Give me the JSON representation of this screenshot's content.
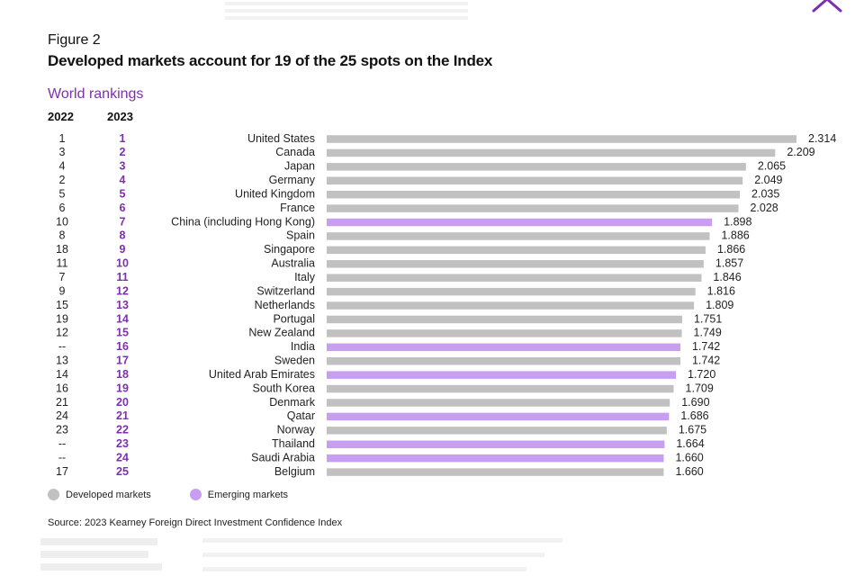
{
  "figure": {
    "label": "Figure 2",
    "title": "Developed markets account for 19 of the 25 spots on the Index",
    "section_title": "World rankings",
    "col_2022": "2022",
    "col_2023": "2023"
  },
  "colors": {
    "developed": "#c1c1c1",
    "emerging": "#c79ef0",
    "rank_2023": "#7e2fb0",
    "accent": "#7e2fb0"
  },
  "chart_data": {
    "type": "bar",
    "orientation": "horizontal",
    "categories": [
      "United States",
      "Canada",
      "Japan",
      "Germany",
      "United Kingdom",
      "France",
      "China (including Hong Kong)",
      "Spain",
      "Singapore",
      "Australia",
      "Italy",
      "Switzerland",
      "Netherlands",
      "Portugal",
      "New Zealand",
      "India",
      "Sweden",
      "United Arab Emirates",
      "South Korea",
      "Denmark",
      "Qatar",
      "Norway",
      "Thailand",
      "Saudi Arabia",
      "Belgium"
    ],
    "values": [
      2.314,
      2.209,
      2.065,
      2.049,
      2.035,
      2.028,
      1.898,
      1.886,
      1.866,
      1.857,
      1.846,
      1.816,
      1.809,
      1.751,
      1.749,
      1.742,
      1.742,
      1.72,
      1.709,
      1.69,
      1.686,
      1.675,
      1.664,
      1.66,
      1.66
    ],
    "value_labels": [
      "2.314",
      "2.209",
      "2.065",
      "2.049",
      "2.035",
      "2.028",
      "1.898",
      "1.886",
      "1.866",
      "1.857",
      "1.846",
      "1.816",
      "1.809",
      "1.751",
      "1.749",
      "1.742",
      "1.742",
      "1.720",
      "1.709",
      "1.690",
      "1.686",
      "1.675",
      "1.664",
      "1.660",
      "1.660"
    ],
    "market_type": [
      "developed",
      "developed",
      "developed",
      "developed",
      "developed",
      "developed",
      "emerging",
      "developed",
      "developed",
      "developed",
      "developed",
      "developed",
      "developed",
      "developed",
      "developed",
      "emerging",
      "developed",
      "emerging",
      "developed",
      "developed",
      "emerging",
      "developed",
      "emerging",
      "emerging",
      "developed"
    ],
    "rank_2022": [
      "1",
      "3",
      "4",
      "2",
      "5",
      "6",
      "10",
      "8",
      "18",
      "11",
      "7",
      "9",
      "15",
      "19",
      "12",
      "--",
      "13",
      "14",
      "16",
      "21",
      "24",
      "23",
      "--",
      "--",
      "17"
    ],
    "rank_2023": [
      "1",
      "2",
      "3",
      "4",
      "5",
      "6",
      "7",
      "8",
      "9",
      "10",
      "11",
      "12",
      "13",
      "14",
      "15",
      "16",
      "17",
      "18",
      "19",
      "20",
      "21",
      "22",
      "23",
      "24",
      "25"
    ],
    "xlim": [
      0,
      2.314
    ],
    "grid": false,
    "legend": {
      "placement": "bottom-left",
      "entries": [
        {
          "label": "Developed markets",
          "type": "developed"
        },
        {
          "label": "Emerging markets",
          "type": "emerging"
        }
      ]
    }
  },
  "source": "Source: 2023 Kearney Foreign Direct Investment Confidence Index"
}
